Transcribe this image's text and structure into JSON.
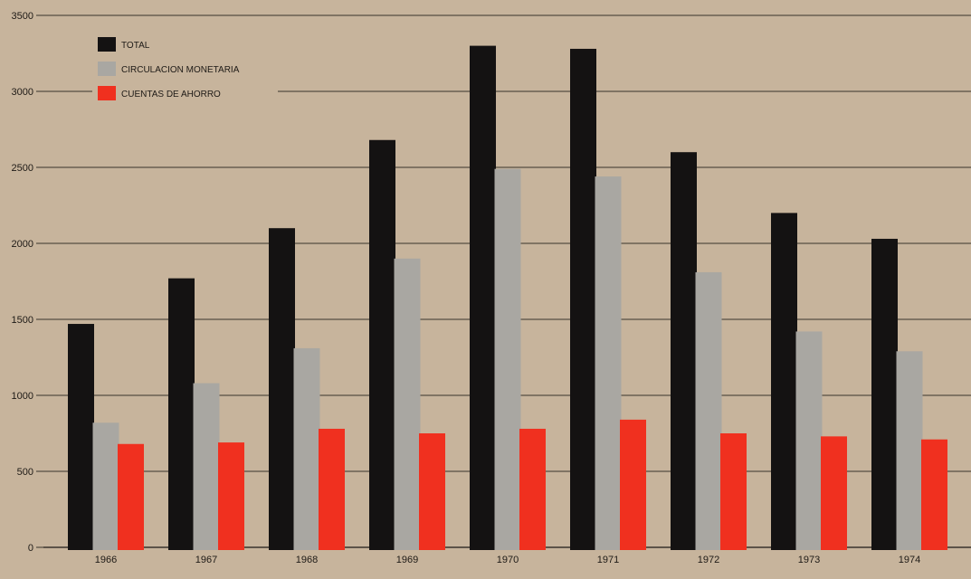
{
  "colors": {
    "background": "#c7b49c",
    "grid": "#3a332c",
    "text": "#1e1a16"
  },
  "chart_data": {
    "type": "bar",
    "title": "",
    "xlabel": "",
    "ylabel": "",
    "ylim": [
      0,
      3500
    ],
    "yticks": [
      0,
      500,
      1000,
      1500,
      2000,
      2500,
      3000,
      3500
    ],
    "grid": true,
    "legend_position": "top-left",
    "categories": [
      "1966",
      "1967",
      "1968",
      "1969",
      "1970",
      "1971",
      "1972",
      "1973",
      "1974"
    ],
    "series": [
      {
        "name": "TOTAL",
        "color": "#141212",
        "values": [
          1470,
          1770,
          2100,
          2680,
          3300,
          3280,
          2600,
          2200,
          2030
        ]
      },
      {
        "name": "CIRCULACION MONETARIA",
        "color": "#a9a7a2",
        "values": [
          820,
          1080,
          1310,
          1900,
          2490,
          2440,
          1810,
          1420,
          1290
        ]
      },
      {
        "name": "CUENTAS DE AHORRO",
        "color": "#f0301f",
        "values": [
          680,
          690,
          780,
          750,
          780,
          840,
          750,
          730,
          710
        ]
      }
    ]
  }
}
